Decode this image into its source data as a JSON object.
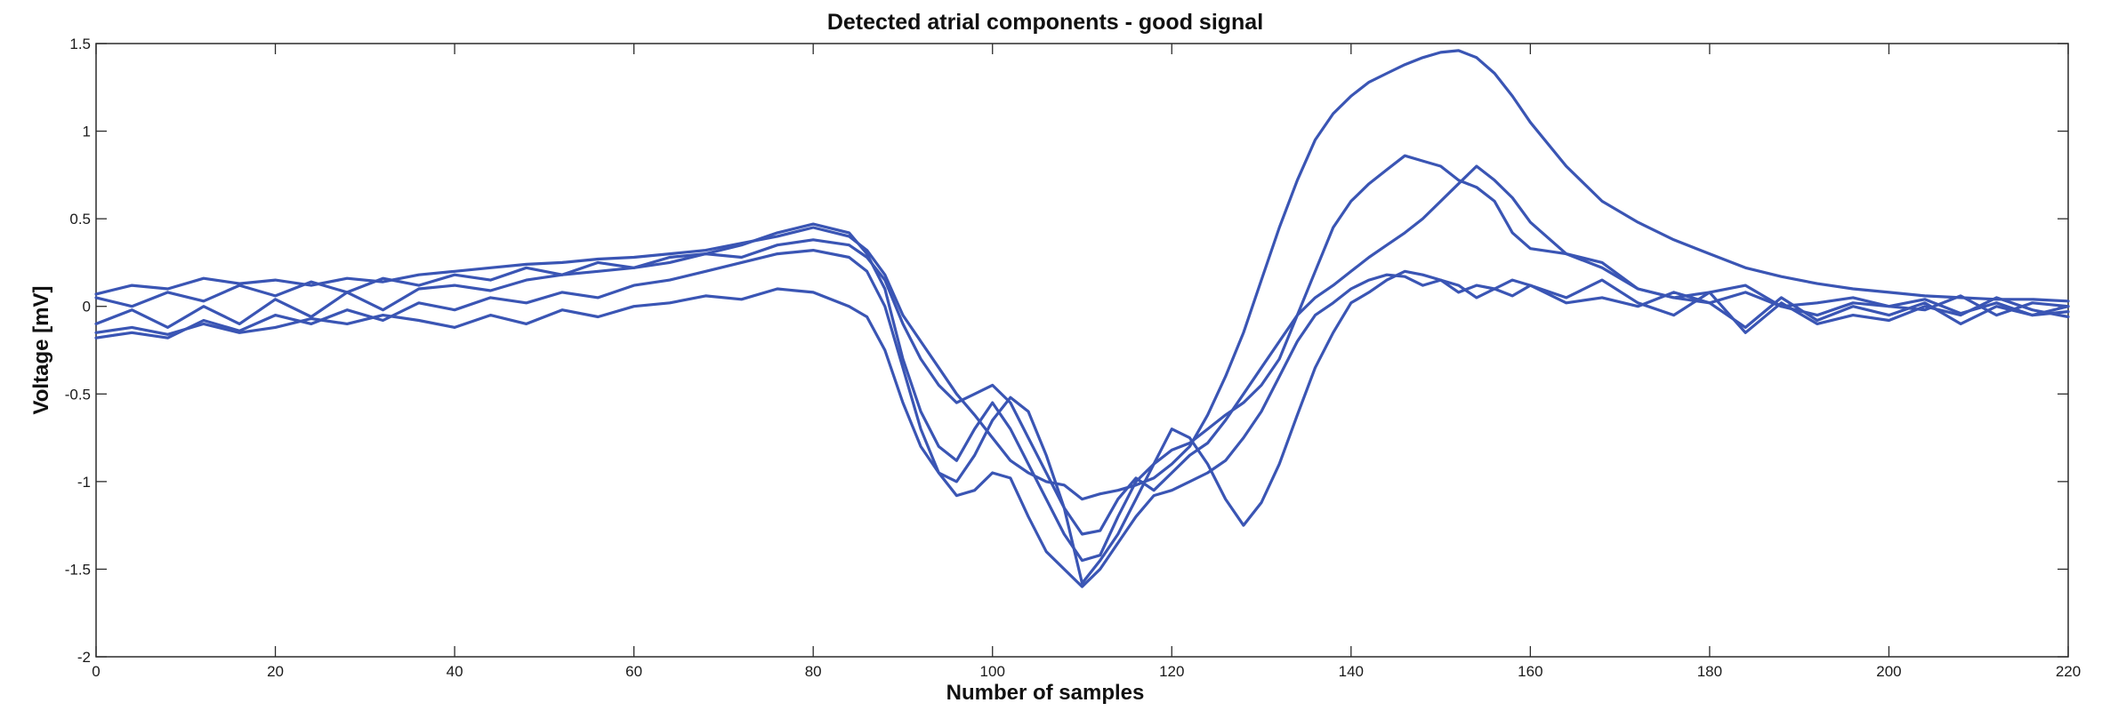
{
  "chart_data": {
    "type": "line",
    "title": "Detected atrial components - good signal",
    "xlabel": "Number of samples",
    "ylabel": "Voltage [mV]",
    "xlim": [
      0,
      220
    ],
    "ylim": [
      -2,
      1.5
    ],
    "xticks": [
      0,
      20,
      40,
      60,
      80,
      100,
      120,
      140,
      160,
      180,
      200,
      220
    ],
    "yticks": [
      1.5,
      1,
      0.5,
      0,
      -0.5,
      -1,
      -1.5,
      -2
    ],
    "grid": false,
    "line_color": "#3a55b4",
    "x": [
      0,
      4,
      8,
      12,
      16,
      20,
      24,
      28,
      32,
      36,
      40,
      44,
      48,
      52,
      56,
      60,
      64,
      68,
      72,
      76,
      80,
      84,
      86,
      88,
      90,
      92,
      94,
      96,
      98,
      100,
      102,
      104,
      106,
      108,
      110,
      112,
      114,
      116,
      118,
      120,
      122,
      124,
      126,
      128,
      130,
      132,
      134,
      136,
      138,
      140,
      142,
      144,
      146,
      148,
      150,
      152,
      154,
      156,
      158,
      160,
      164,
      168,
      172,
      176,
      180,
      184,
      188,
      192,
      196,
      200,
      204,
      208,
      212,
      216,
      220
    ],
    "series": [
      {
        "values": [
          0.07,
          0.12,
          0.1,
          0.16,
          0.13,
          0.15,
          0.12,
          0.16,
          0.14,
          0.18,
          0.2,
          0.22,
          0.24,
          0.25,
          0.27,
          0.28,
          0.3,
          0.32,
          0.36,
          0.4,
          0.45,
          0.4,
          0.32,
          0.18,
          -0.05,
          -0.2,
          -0.35,
          -0.5,
          -0.62,
          -0.75,
          -0.88,
          -0.95,
          -1.0,
          -1.02,
          -1.1,
          -1.07,
          -1.05,
          -1.02,
          -0.98,
          -0.9,
          -0.8,
          -0.62,
          -0.4,
          -0.15,
          0.15,
          0.45,
          0.72,
          0.95,
          1.1,
          1.2,
          1.28,
          1.33,
          1.38,
          1.42,
          1.45,
          1.46,
          1.42,
          1.33,
          1.2,
          1.05,
          0.8,
          0.6,
          0.48,
          0.38,
          0.3,
          0.22,
          0.17,
          0.13,
          0.1,
          0.08,
          0.06,
          0.05,
          0.04,
          0.04,
          0.03
        ]
      },
      {
        "values": [
          0.05,
          0.0,
          0.08,
          0.03,
          0.12,
          0.06,
          0.14,
          0.08,
          0.16,
          0.12,
          0.18,
          0.15,
          0.22,
          0.18,
          0.25,
          0.22,
          0.28,
          0.3,
          0.35,
          0.42,
          0.47,
          0.42,
          0.3,
          0.1,
          -0.3,
          -0.6,
          -0.8,
          -0.88,
          -0.7,
          -0.55,
          -0.7,
          -0.9,
          -1.1,
          -1.3,
          -1.45,
          -1.42,
          -1.2,
          -1.0,
          -0.9,
          -0.82,
          -0.78,
          -0.7,
          -0.62,
          -0.55,
          -0.45,
          -0.3,
          -0.05,
          0.2,
          0.45,
          0.6,
          0.7,
          0.78,
          0.86,
          0.83,
          0.8,
          0.72,
          0.68,
          0.6,
          0.42,
          0.33,
          0.3,
          0.25,
          0.1,
          0.05,
          0.08,
          0.12,
          0.0,
          0.02,
          0.05,
          0.0,
          -0.02,
          0.06,
          -0.05,
          0.02,
          0.0
        ]
      },
      {
        "values": [
          -0.1,
          -0.02,
          -0.12,
          0.0,
          -0.1,
          0.04,
          -0.06,
          0.08,
          -0.02,
          0.1,
          0.12,
          0.09,
          0.15,
          0.18,
          0.2,
          0.22,
          0.25,
          0.3,
          0.28,
          0.35,
          0.38,
          0.35,
          0.28,
          0.15,
          -0.1,
          -0.3,
          -0.45,
          -0.55,
          -0.5,
          -0.45,
          -0.55,
          -0.75,
          -0.95,
          -1.15,
          -1.3,
          -1.28,
          -1.1,
          -0.98,
          -1.05,
          -0.95,
          -0.85,
          -0.78,
          -0.65,
          -0.5,
          -0.35,
          -0.2,
          -0.05,
          0.05,
          0.12,
          0.2,
          0.28,
          0.35,
          0.42,
          0.5,
          0.6,
          0.7,
          0.8,
          0.72,
          0.62,
          0.48,
          0.3,
          0.22,
          0.1,
          0.05,
          0.02,
          0.08,
          0.0,
          -0.05,
          0.02,
          0.0,
          0.04,
          -0.04,
          0.02,
          -0.05,
          0.0
        ]
      },
      {
        "values": [
          -0.18,
          -0.15,
          -0.18,
          -0.08,
          -0.14,
          -0.05,
          -0.1,
          -0.02,
          -0.08,
          0.02,
          -0.02,
          0.05,
          0.02,
          0.08,
          0.05,
          0.12,
          0.15,
          0.2,
          0.25,
          0.3,
          0.32,
          0.28,
          0.2,
          0.0,
          -0.35,
          -0.7,
          -0.95,
          -1.08,
          -1.05,
          -0.95,
          -0.98,
          -1.2,
          -1.4,
          -1.5,
          -1.6,
          -1.5,
          -1.35,
          -1.2,
          -1.08,
          -1.05,
          -1.0,
          -0.95,
          -0.88,
          -0.75,
          -0.6,
          -0.4,
          -0.2,
          -0.05,
          0.02,
          0.1,
          0.15,
          0.18,
          0.17,
          0.12,
          0.15,
          0.08,
          0.12,
          0.1,
          0.06,
          0.12,
          0.02,
          0.05,
          0.0,
          0.08,
          0.02,
          -0.12,
          0.05,
          -0.08,
          0.0,
          -0.05,
          0.02,
          -0.1,
          0.0,
          -0.05,
          -0.03
        ]
      },
      {
        "values": [
          -0.15,
          -0.12,
          -0.16,
          -0.1,
          -0.15,
          -0.12,
          -0.07,
          -0.1,
          -0.05,
          -0.08,
          -0.12,
          -0.05,
          -0.1,
          -0.02,
          -0.06,
          0.0,
          0.02,
          0.06,
          0.04,
          0.1,
          0.08,
          0.0,
          -0.06,
          -0.25,
          -0.55,
          -0.8,
          -0.95,
          -1.0,
          -0.85,
          -0.65,
          -0.52,
          -0.6,
          -0.85,
          -1.15,
          -1.58,
          -1.45,
          -1.3,
          -1.1,
          -0.9,
          -0.7,
          -0.75,
          -0.9,
          -1.1,
          -1.25,
          -1.12,
          -0.9,
          -0.62,
          -0.35,
          -0.15,
          0.02,
          0.08,
          0.15,
          0.2,
          0.18,
          0.15,
          0.12,
          0.05,
          0.1,
          0.15,
          0.12,
          0.05,
          0.15,
          0.02,
          -0.05,
          0.08,
          -0.15,
          0.02,
          -0.1,
          -0.05,
          -0.08,
          0.0,
          -0.05,
          0.05,
          -0.02,
          -0.06
        ]
      }
    ]
  }
}
